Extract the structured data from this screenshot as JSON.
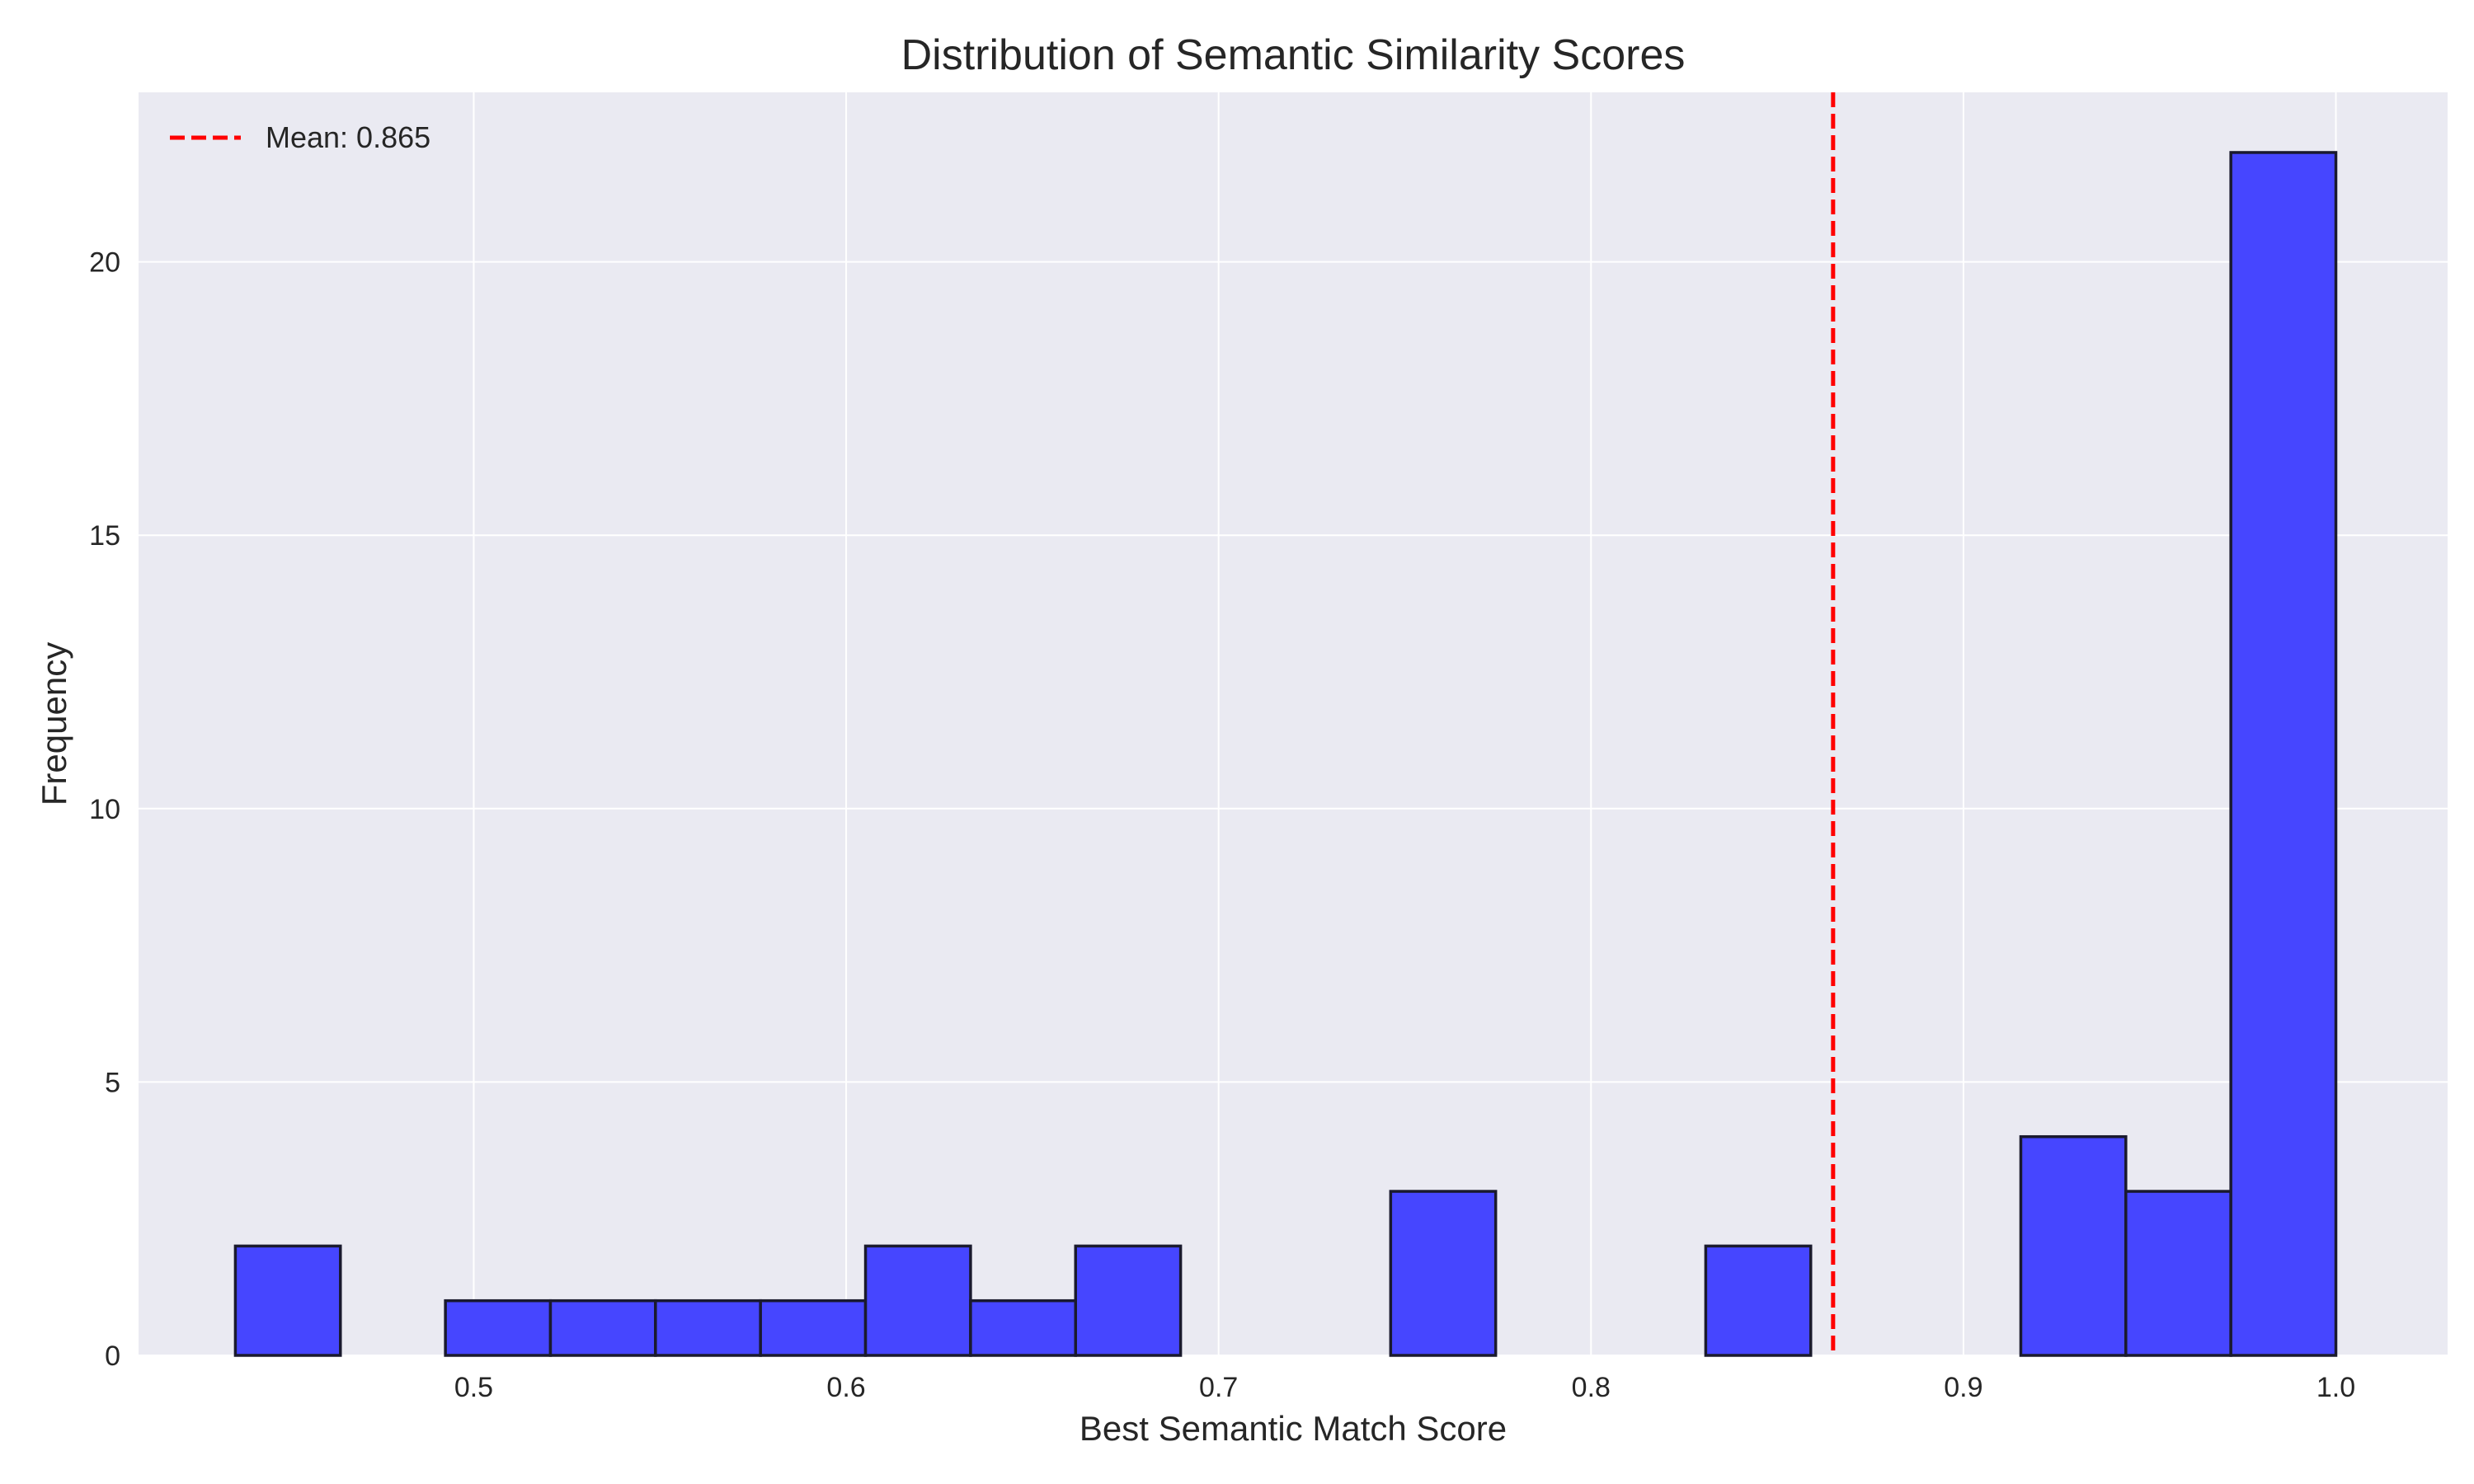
{
  "chart_data": {
    "type": "bar",
    "title": "Distribution of Semantic Similarity Scores",
    "xlabel": "Best Semantic Match Score",
    "ylabel": "Frequency",
    "xlim": [
      0.41,
      1.03
    ],
    "ylim": [
      0,
      23.1
    ],
    "xticks": [
      0.5,
      0.6,
      0.7,
      0.8,
      0.9,
      1.0
    ],
    "xtick_labels": [
      "0.5",
      "0.6",
      "0.7",
      "0.8",
      "0.9",
      "1.0"
    ],
    "yticks": [
      0,
      5,
      10,
      15,
      20
    ],
    "ytick_labels": [
      "0",
      "5",
      "10",
      "15",
      "20"
    ],
    "bin_edges": [
      0.436,
      0.4642,
      0.4924,
      0.5206,
      0.5488,
      0.577,
      0.6052,
      0.6334,
      0.6616,
      0.6898,
      0.718,
      0.7462,
      0.7744,
      0.8026,
      0.8308,
      0.859,
      0.8872,
      0.9154,
      0.9436,
      0.9718,
      1.0
    ],
    "counts": [
      2,
      0,
      1,
      1,
      1,
      1,
      2,
      1,
      2,
      0,
      0,
      3,
      0,
      0,
      2,
      0,
      0,
      4,
      3,
      22
    ],
    "mean_line": {
      "x": 0.865,
      "label": "Mean: 0.865",
      "color": "#ff0000",
      "style": "dashed"
    },
    "legend": {
      "position": "top-left",
      "entries": [
        "Mean: 0.865"
      ]
    },
    "grid": true,
    "colors": {
      "bar_fill": "#4646ff",
      "bar_edge": "#1a1a2e",
      "plot_bg": "#eaeaf2",
      "grid": "#ffffff"
    }
  }
}
